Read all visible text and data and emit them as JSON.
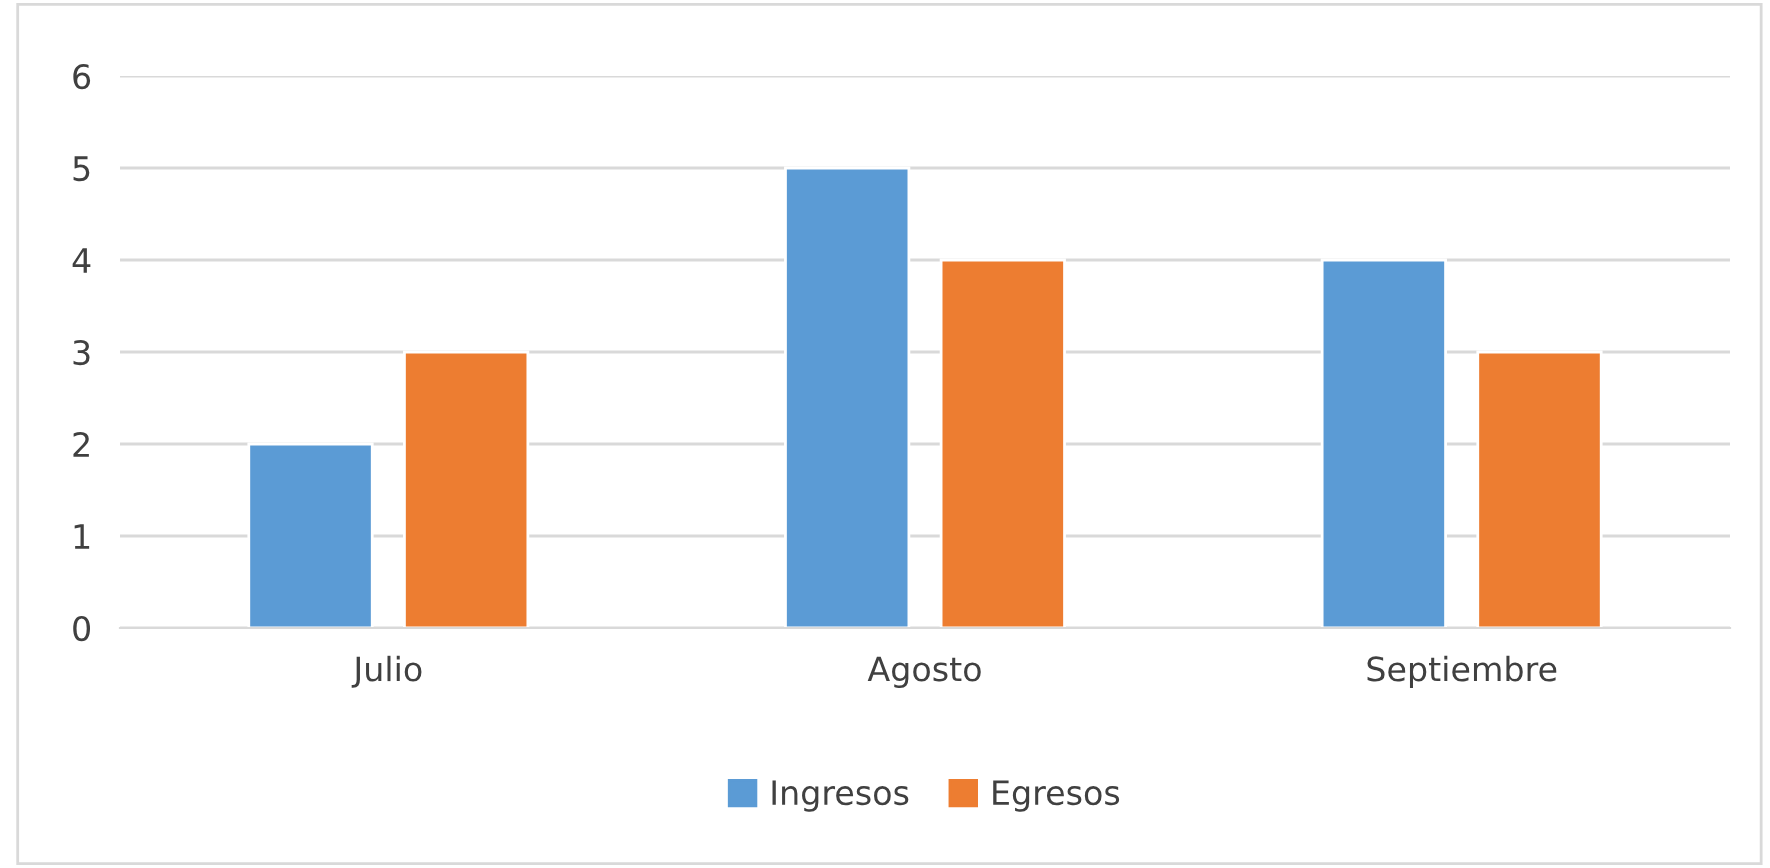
{
  "chart_data": {
    "type": "bar",
    "categories": [
      "Julio",
      "Agosto",
      "Septiembre"
    ],
    "series": [
      {
        "name": "Ingresos",
        "color": "#5b9bd5",
        "values": [
          2,
          5,
          4
        ]
      },
      {
        "name": "Egresos",
        "color": "#ed7d31",
        "values": [
          3,
          4,
          3
        ]
      }
    ],
    "ylim": [
      0,
      6
    ],
    "yticks": [
      0,
      1,
      2,
      3,
      4,
      5,
      6
    ],
    "grid": "y",
    "legend": "bottom"
  }
}
